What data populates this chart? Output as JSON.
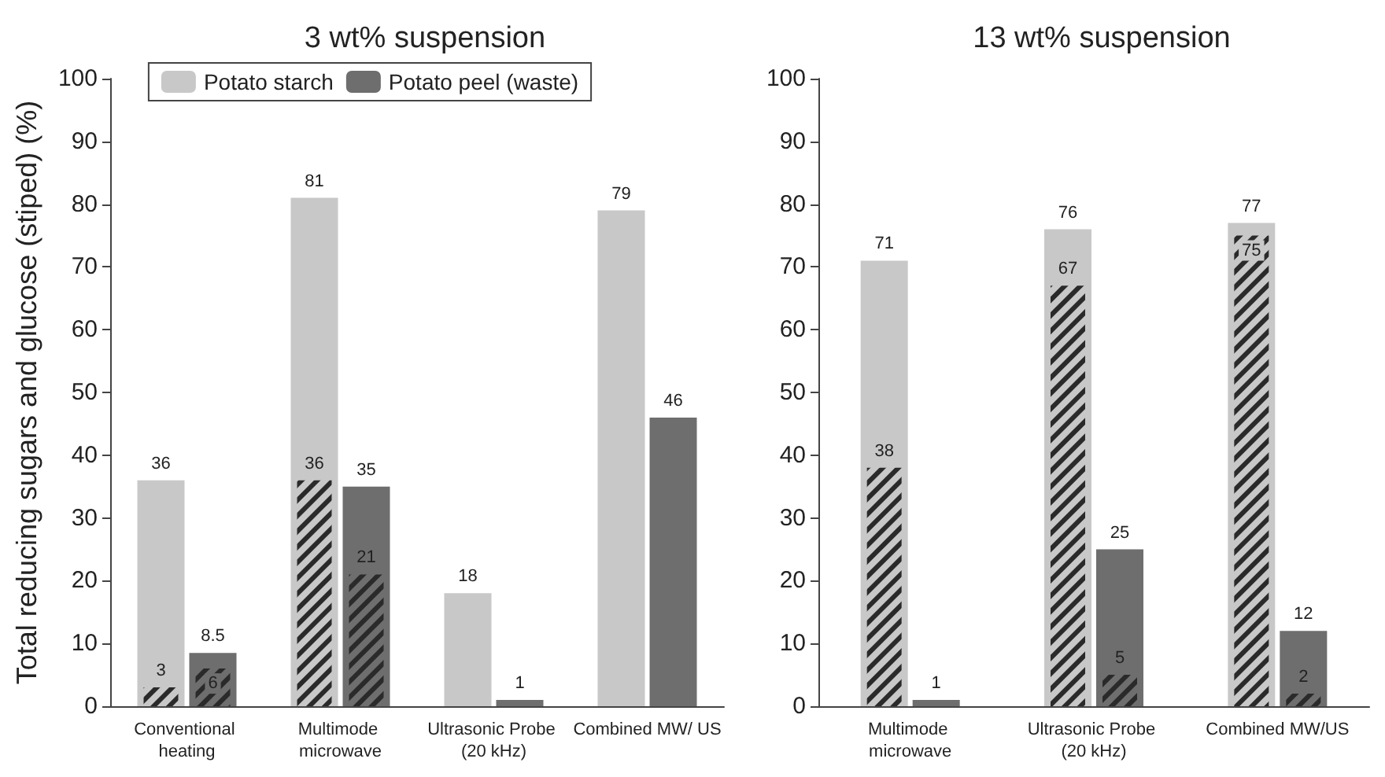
{
  "chart_data": [
    {
      "type": "bar",
      "title": "3 wt% suspension",
      "ylabel": "Total reducing sugars and glucose (stiped) (%)",
      "categories": [
        "Conventional heating",
        "Multimode microwave",
        "Ultrasonic Probe (20 kHz)",
        "Combined MW/ US"
      ],
      "ylim": [
        0,
        100
      ],
      "yticks": [
        0,
        10,
        20,
        30,
        40,
        50,
        60,
        70,
        80,
        90,
        100
      ],
      "grid": false,
      "legend": "top",
      "data_labels": true,
      "series": [
        {
          "name": "Potato starch",
          "color": "#c8c8c8",
          "values": [
            36,
            81,
            18,
            79
          ]
        },
        {
          "name": "Potato peel (waste)",
          "color": "#6e6e6e",
          "values": [
            8.5,
            35,
            1,
            46
          ]
        },
        {
          "color": "#2a2a2a",
          "values": [
            3,
            36,
            null,
            null
          ]
        },
        {
          "color": "#2a2a2a",
          "values": [
            6,
            21,
            null,
            null
          ]
        }
      ]
    },
    {
      "type": "bar",
      "title": "13 wt% suspension",
      "categories": [
        "Multimode microwave",
        "Ultrasonic Probe (20 kHz)",
        "Combined MW/US"
      ],
      "ylim": [
        0,
        100
      ],
      "yticks": [
        0,
        10,
        20,
        30,
        40,
        50,
        60,
        70,
        80,
        90,
        100
      ],
      "grid": false,
      "data_labels": true,
      "series": [
        {
          "color": "#c8c8c8",
          "values": [
            71,
            76,
            77
          ]
        },
        {
          "color": "#6e6e6e",
          "values": [
            1,
            25,
            12
          ]
        },
        {
          "color": "#2a2a2a",
          "values": [
            38,
            67,
            75
          ]
        },
        {
          "color": "#2a2a2a",
          "values": [
            null,
            5,
            2
          ]
        }
      ]
    }
  ]
}
